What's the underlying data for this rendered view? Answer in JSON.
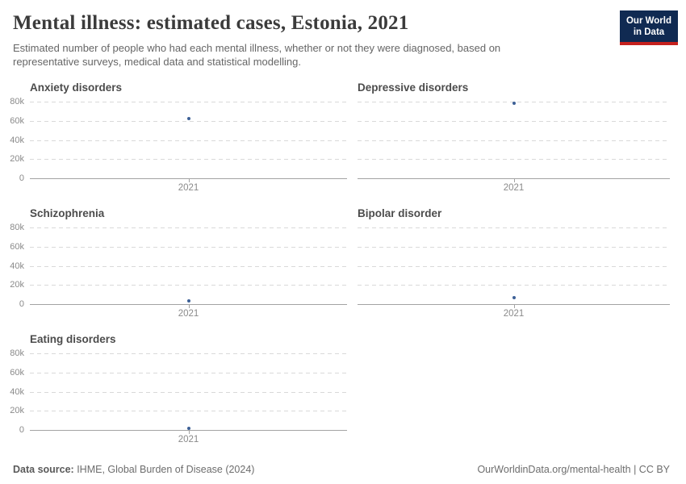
{
  "header": {
    "title": "Mental illness: estimated cases, Estonia, 2021",
    "subtitle": "Estimated number of people who had each mental illness, whether or not they were diagnosed, based on representative surveys, medical data and statistical modelling."
  },
  "logo": {
    "line1": "Our World",
    "line2": "in Data",
    "background_color": "#102a52",
    "bar_color": "#c5211e"
  },
  "chart_data": {
    "type": "scatter",
    "title": "Mental illness: estimated cases, Estonia, 2021",
    "x": [
      2021
    ],
    "x_tick_label": "2021",
    "ylim": [
      0,
      80000
    ],
    "ytick_labels": [
      "80k",
      "60k",
      "40k",
      "20k",
      "0"
    ],
    "grid": true,
    "legend": "none",
    "point_color": "#3d6096",
    "panels": [
      {
        "title": "Anxiety disorders",
        "year": 2021,
        "value": 62000
      },
      {
        "title": "Depressive disorders",
        "year": 2021,
        "value": 78000
      },
      {
        "title": "Schizophrenia",
        "year": 2021,
        "value": 3400
      },
      {
        "title": "Bipolar disorder",
        "year": 2021,
        "value": 6800
      },
      {
        "title": "Eating disorders",
        "year": 2021,
        "value": 1900
      }
    ]
  },
  "footer": {
    "source_label": "Data source:",
    "source_value": " IHME, Global Burden of Disease (2024)",
    "link": "OurWorldinData.org/mental-health",
    "separator": " | ",
    "license": "CC BY"
  }
}
